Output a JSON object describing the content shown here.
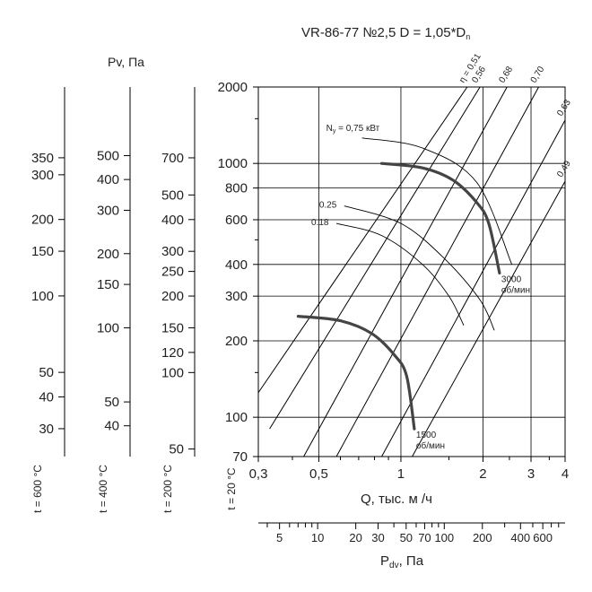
{
  "chart_data": {
    "type": "line",
    "title": "VR-86-77 №2,5 D = 1,05*D",
    "title_subscript": "n",
    "xlabel": "Q, тыс. м /ч",
    "ylabel": "Pv, Па",
    "x_scale": "log",
    "y_scale": "log",
    "xlim": [
      0.3,
      4
    ],
    "ylim": [
      70,
      2000
    ],
    "x_ticks": [
      {
        "value": 0.3,
        "label": "0,3"
      },
      {
        "value": 0.5,
        "label": "0,5"
      },
      {
        "value": 1,
        "label": "1"
      },
      {
        "value": 2,
        "label": "2"
      },
      {
        "value": 3,
        "label": "3"
      },
      {
        "value": 4,
        "label": "4"
      }
    ],
    "y_ticks": [
      {
        "value": 2000,
        "label": "2000"
      },
      {
        "value": 1000,
        "label": "1000"
      },
      {
        "value": 800,
        "label": "800"
      },
      {
        "value": 600,
        "label": "600"
      },
      {
        "value": 400,
        "label": "400"
      },
      {
        "value": 300,
        "label": "300"
      },
      {
        "value": 200,
        "label": "200"
      },
      {
        "value": 100,
        "label": "100"
      },
      {
        "value": 70,
        "label": "70"
      }
    ],
    "temperature_scales": [
      {
        "label": "t = 600 °C",
        "ticks": [
          {
            "value": 350,
            "label": "350"
          },
          {
            "value": 300,
            "label": "300"
          },
          {
            "value": 200,
            "label": "200"
          },
          {
            "value": 150,
            "label": "150"
          },
          {
            "value": 100,
            "label": "100"
          },
          {
            "value": 50,
            "label": "50"
          },
          {
            "value": 40,
            "label": "40"
          },
          {
            "value": 30,
            "label": "30"
          }
        ]
      },
      {
        "label": "t = 400 °C",
        "ticks": [
          {
            "value": 500,
            "label": "500"
          },
          {
            "value": 400,
            "label": "400"
          },
          {
            "value": 300,
            "label": "300"
          },
          {
            "value": 200,
            "label": "200"
          },
          {
            "value": 150,
            "label": "150"
          },
          {
            "value": 100,
            "label": "100"
          },
          {
            "value": 50,
            "label": "50"
          },
          {
            "value": 40,
            "label": "40"
          }
        ]
      },
      {
        "label": "t = 200 °C",
        "ticks": [
          {
            "value": 700,
            "label": "700"
          },
          {
            "value": 500,
            "label": "500"
          },
          {
            "value": 400,
            "label": "400"
          },
          {
            "value": 300,
            "label": "300"
          },
          {
            "value": 250,
            "label": "250"
          },
          {
            "value": 200,
            "label": "200"
          },
          {
            "value": 150,
            "label": "150"
          },
          {
            "value": 120,
            "label": "120"
          },
          {
            "value": 100,
            "label": "100"
          },
          {
            "value": 50,
            "label": "50"
          }
        ]
      },
      {
        "label": "t = 20 °C",
        "ticks": []
      }
    ],
    "efficiency_lines": [
      {
        "label": "η = 0,51",
        "points": [
          [
            0.3,
            125
          ],
          [
            1.75,
            2000
          ]
        ]
      },
      {
        "label": "0,56",
        "points": [
          [
            0.33,
            90
          ],
          [
            1.95,
            2000
          ]
        ]
      },
      {
        "label": "0,68",
        "points": [
          [
            0.44,
            70
          ],
          [
            2.45,
            2000
          ]
        ]
      },
      {
        "label": "0,70",
        "points": [
          [
            0.58,
            70
          ],
          [
            3.2,
            2000
          ]
        ]
      },
      {
        "label": "0,63",
        "points": [
          [
            0.85,
            70
          ],
          [
            4,
            1480
          ]
        ]
      },
      {
        "label": "0,49",
        "points": [
          [
            1.1,
            70
          ],
          [
            4,
            850
          ]
        ]
      }
    ],
    "power_curves": [
      {
        "label": "N = 0,75 кВт",
        "subscript": "y",
        "points": [
          [
            0.72,
            1260
          ],
          [
            1.2,
            1150
          ],
          [
            1.9,
            840
          ],
          [
            2.55,
            400
          ]
        ]
      },
      {
        "label": "0.25",
        "points": [
          [
            0.62,
            680
          ],
          [
            1.0,
            580
          ],
          [
            1.45,
            420
          ],
          [
            1.95,
            290
          ],
          [
            2.2,
            220
          ]
        ]
      },
      {
        "label": "0.18",
        "points": [
          [
            0.58,
            580
          ],
          [
            0.85,
            520
          ],
          [
            1.2,
            400
          ],
          [
            1.5,
            300
          ],
          [
            1.7,
            230
          ]
        ]
      }
    ],
    "speed_curves": [
      {
        "label_rpm": "3000",
        "label_unit": "об/мин",
        "points": [
          [
            0.85,
            1000
          ],
          [
            1.2,
            960
          ],
          [
            1.55,
            860
          ],
          [
            1.9,
            700
          ],
          [
            2.1,
            580
          ],
          [
            2.3,
            370
          ]
        ]
      },
      {
        "label_rpm": "1500",
        "label_unit": "об/мин",
        "points": [
          [
            0.42,
            250
          ],
          [
            0.6,
            240
          ],
          [
            0.78,
            214
          ],
          [
            0.95,
            175
          ],
          [
            1.05,
            145
          ],
          [
            1.12,
            90
          ]
        ]
      }
    ],
    "dynamic_pressure_scale": {
      "label": "P",
      "label_subscript": "dv",
      "label_suffix": ", Па",
      "ticks": [
        {
          "value": 5,
          "label": "5"
        },
        {
          "value": 10,
          "label": "10"
        },
        {
          "value": 20,
          "label": "20"
        },
        {
          "value": 30,
          "label": "30"
        },
        {
          "value": 50,
          "label": "50"
        },
        {
          "value": 70,
          "label": "70"
        },
        {
          "value": 100,
          "label": "100"
        },
        {
          "value": 200,
          "label": "200"
        },
        {
          "value": 400,
          "label": "400"
        },
        {
          "value": 600,
          "label": "600"
        }
      ]
    },
    "grid": true,
    "legend": "none"
  }
}
